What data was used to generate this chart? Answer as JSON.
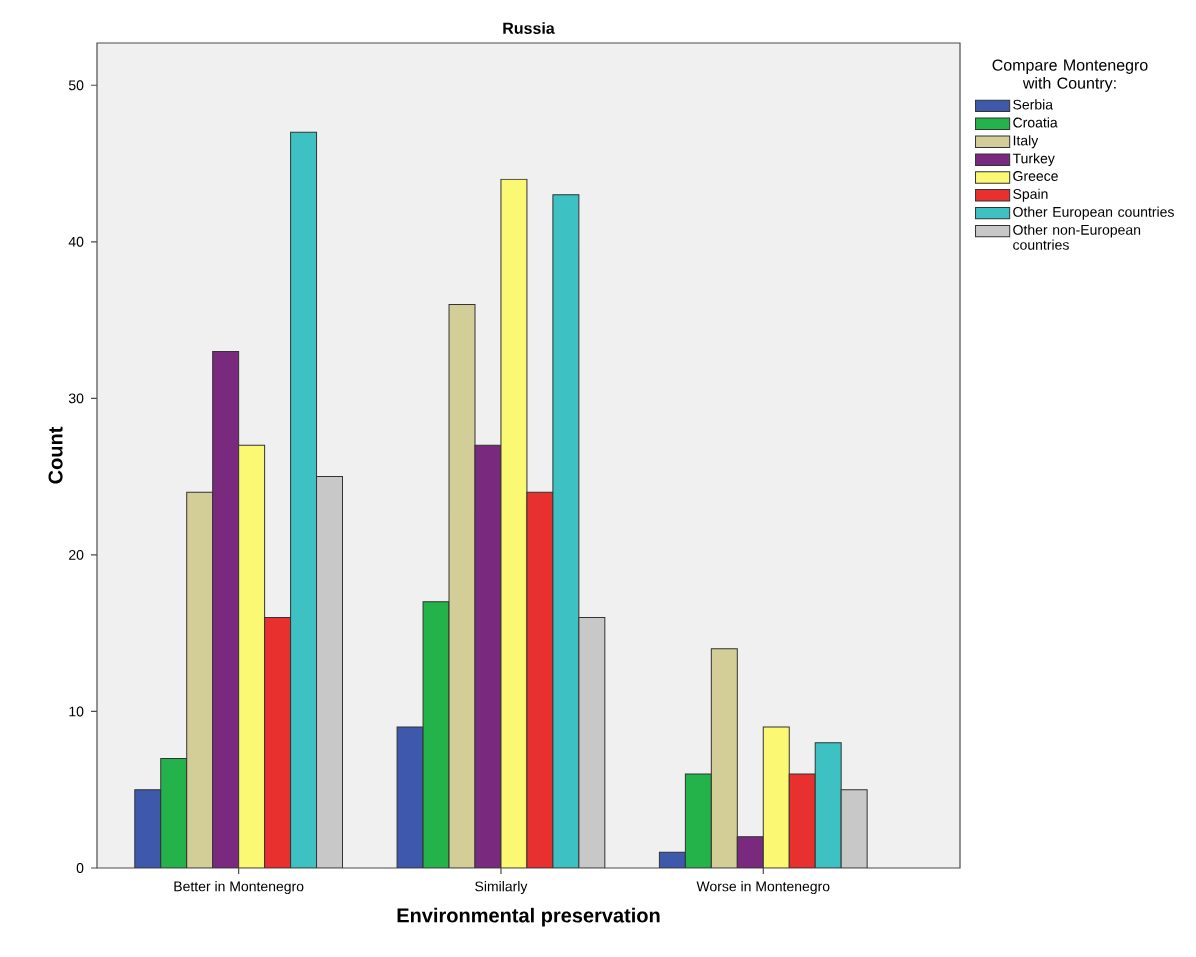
{
  "chart_data": {
    "type": "bar",
    "title": "Russia",
    "xlabel": "Environmental preservation",
    "ylabel": "Count",
    "legend_title": "Compare Montenegro with Country:",
    "categories": [
      "Better in Montenegro",
      "Similarly",
      "Worse in Montenegro"
    ],
    "series": [
      {
        "name": "Serbia",
        "color": "#3e58ac",
        "values": [
          5,
          9,
          1
        ]
      },
      {
        "name": "Croatia",
        "color": "#24b34b",
        "values": [
          7,
          17,
          6
        ]
      },
      {
        "name": "Italy",
        "color": "#d3ce97",
        "values": [
          24,
          36,
          14
        ]
      },
      {
        "name": "Turkey",
        "color": "#7a2a7e",
        "values": [
          33,
          27,
          2
        ]
      },
      {
        "name": "Greece",
        "color": "#fbf873",
        "values": [
          27,
          44,
          9
        ]
      },
      {
        "name": "Spain",
        "color": "#e8312e",
        "values": [
          16,
          24,
          6
        ]
      },
      {
        "name": "Other European countries",
        "color": "#3ec1c3",
        "values": [
          47,
          43,
          8
        ]
      },
      {
        "name": "Other non-European countries",
        "color": "#c8c8c8",
        "values": [
          25,
          16,
          5
        ]
      }
    ],
    "ylim": [
      0,
      52.7
    ],
    "yticks": [
      0,
      10,
      20,
      30,
      40,
      50
    ],
    "grid": false,
    "legend": "top right"
  }
}
